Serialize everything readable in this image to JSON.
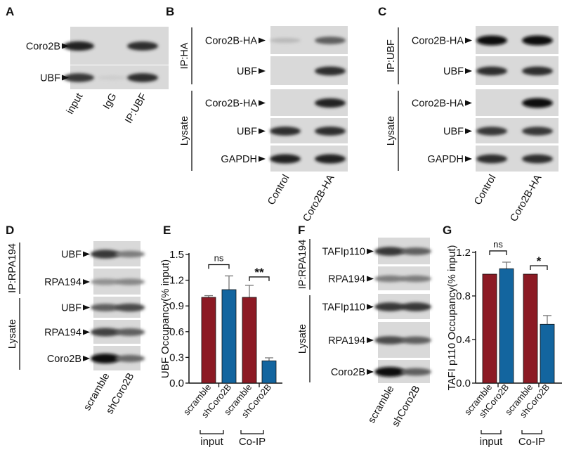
{
  "panels": {
    "A": {
      "letter": "A",
      "lanes": [
        "input",
        "IgG",
        "IP:UBF"
      ],
      "groups": [],
      "rows": [
        {
          "label": "Coro2B",
          "bands": [
            0.9,
            0.0,
            0.85
          ]
        },
        {
          "label": "UBF",
          "bands": [
            0.8,
            0.05,
            0.85
          ]
        }
      ]
    },
    "B": {
      "letter": "B",
      "lanes": [
        "Control",
        "Coro2B-HA"
      ],
      "groups": [
        {
          "label": "IP:HA"
        },
        {
          "label": "Lysate"
        }
      ],
      "rows": [
        {
          "label": "Coro2B-HA",
          "bands": [
            0.15,
            0.6
          ]
        },
        {
          "label": "UBF",
          "bands": [
            0.0,
            0.85
          ]
        },
        {
          "label": "Coro2B-HA",
          "bands": [
            0.0,
            0.9
          ]
        },
        {
          "label": "UBF",
          "bands": [
            0.85,
            0.85
          ]
        },
        {
          "label": "GAPDH",
          "bands": [
            0.9,
            0.9
          ]
        }
      ]
    },
    "C": {
      "letter": "C",
      "lanes": [
        "Control",
        "Coro2B-HA"
      ],
      "groups": [
        {
          "label": "IP:UBF"
        },
        {
          "label": "Lysate"
        }
      ],
      "rows": [
        {
          "label": "Coro2B-HA",
          "bands": [
            1.0,
            1.0
          ]
        },
        {
          "label": "UBF",
          "bands": [
            0.85,
            0.85
          ]
        },
        {
          "label": "Coro2B-HA",
          "bands": [
            0.0,
            1.0
          ]
        },
        {
          "label": "UBF",
          "bands": [
            0.8,
            0.8
          ]
        },
        {
          "label": "GAPDH",
          "bands": [
            0.85,
            0.85
          ]
        }
      ]
    },
    "D": {
      "letter": "D",
      "lanes": [
        "scramble",
        "shCoro2B"
      ],
      "groups": [
        {
          "label": "IP:RPA194"
        },
        {
          "label": "Lysate"
        }
      ],
      "rows": [
        {
          "label": "UBF",
          "bands": [
            0.8,
            0.45
          ]
        },
        {
          "label": "RPA194",
          "bands": [
            0.35,
            0.4
          ]
        },
        {
          "label": "UBF",
          "bands": [
            0.6,
            0.7
          ]
        },
        {
          "label": "RPA194",
          "bands": [
            0.75,
            0.6
          ]
        },
        {
          "label": "Coro2B",
          "bands": [
            1.0,
            0.55
          ]
        }
      ]
    },
    "F": {
      "letter": "F",
      "lanes": [
        "scramble",
        "shCoro2B"
      ],
      "groups": [
        {
          "label": "IP:RPA194"
        },
        {
          "label": "Lysate"
        }
      ],
      "rows": [
        {
          "label": "TAFIp110",
          "bands": [
            0.8,
            0.6
          ]
        },
        {
          "label": "RPA194",
          "bands": [
            0.45,
            0.45
          ]
        },
        {
          "label": "TAFIp110",
          "bands": [
            0.8,
            0.8
          ]
        },
        {
          "label": "RPA194",
          "bands": [
            0.7,
            0.6
          ]
        },
        {
          "label": "Coro2B",
          "bands": [
            1.0,
            0.6
          ]
        }
      ]
    }
  },
  "chart_data": [
    {
      "letter": "E",
      "type": "bar",
      "title": "",
      "ylabel": "UBF Occupancy(% input)",
      "ylim": [
        0,
        1.5
      ],
      "yticks": [
        "0.0",
        "0.3",
        "0.6",
        "0.9",
        "1.2",
        "1.5"
      ],
      "categories": [
        "scramble",
        "shCoro2B",
        "scramble",
        "shCoro2B"
      ],
      "groups": [
        "input",
        "Co-IP"
      ],
      "values": [
        1.0,
        1.09,
        1.0,
        0.26
      ],
      "errors": [
        0.02,
        0.16,
        0.14,
        0.035
      ],
      "significance": [
        "ns",
        "**"
      ],
      "colors": [
        "#8c1a24",
        "#13659f"
      ]
    },
    {
      "letter": "G",
      "type": "bar",
      "title": "",
      "ylabel": "TAFI p110 Occupancy(% input)",
      "ylim": [
        0,
        1.2
      ],
      "yticks": [
        "0.0",
        "0.4",
        "0.8",
        "1.2"
      ],
      "categories": [
        "scramble",
        "shCoro2B",
        "scramble",
        "shCoro2B"
      ],
      "groups": [
        "input",
        "Co-IP"
      ],
      "values": [
        1.0,
        1.05,
        1.0,
        0.54
      ],
      "errors": [
        0.0,
        0.06,
        0.0,
        0.08
      ],
      "significance": [
        "ns",
        "*"
      ],
      "colors": [
        "#8c1a24",
        "#13659f"
      ]
    }
  ]
}
